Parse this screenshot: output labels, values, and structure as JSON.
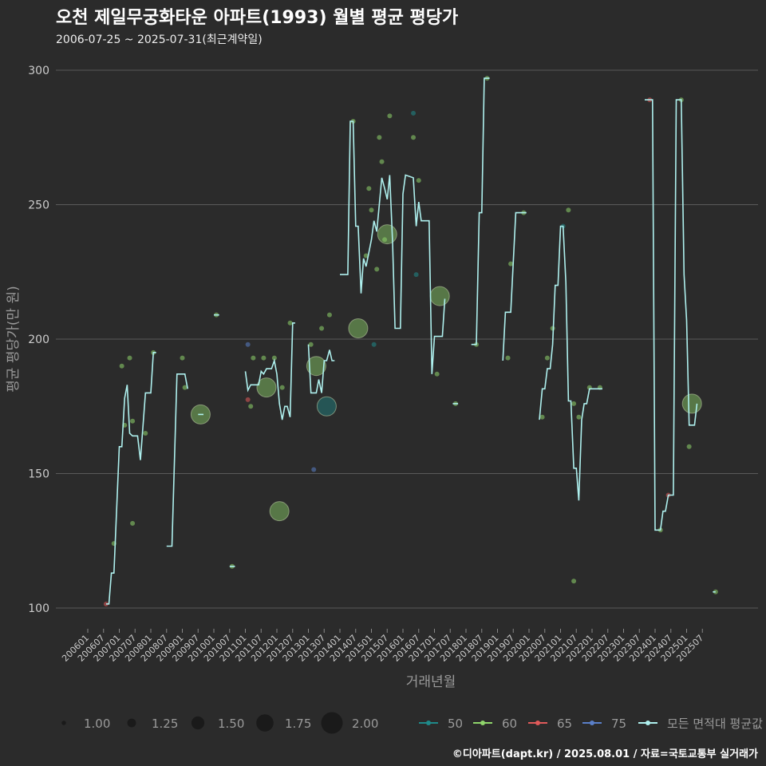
{
  "title": "오천 제일무궁화타운 아파트(1993) 월별 평균 평당가",
  "subtitle": "2006-07-25 ~ 2025-07-31(최근계약일)",
  "caption": "©디아파트(dapt.kr) / 2025.08.01 / 자료=국토교통부 실거래가",
  "colors": {
    "background": "#2b2b2b",
    "grid": "#5a5a5a",
    "text": "#cccccc",
    "avg_line": "#aef0ee",
    "area_50": "#1f8a8a",
    "area_60": "#8fd56b",
    "area_65": "#e05a5a",
    "area_75": "#5a7fc8"
  },
  "chart_data": {
    "type": "line",
    "xlabel": "거래년월",
    "ylabel": "평균 평당가(만 원)",
    "ylim": [
      95,
      305
    ],
    "yticks": [
      100,
      150,
      200,
      250,
      300
    ],
    "x_tick_labels": [
      "200601",
      "200607",
      "200701",
      "200707",
      "200801",
      "200807",
      "200901",
      "200907",
      "201001",
      "201007",
      "201101",
      "201107",
      "201201",
      "201207",
      "201301",
      "201307",
      "201401",
      "201407",
      "201501",
      "201507",
      "201601",
      "201607",
      "201701",
      "201707",
      "201801",
      "201807",
      "201901",
      "201907",
      "202001",
      "202007",
      "202101",
      "202107",
      "202201",
      "202207",
      "202301",
      "202307",
      "202401",
      "202407",
      "202501",
      "202507"
    ],
    "size_legend": {
      "labels": [
        "1.00",
        "1.25",
        "1.50",
        "1.75",
        "2.00"
      ],
      "values": [
        1.0,
        1.25,
        1.5,
        1.75,
        2.0
      ]
    },
    "color_legend": [
      "50",
      "60",
      "65",
      "75",
      "모든 면적대 평균값"
    ],
    "avg_series": {
      "name": "모든 면적대 평균값",
      "segments": [
        [
          [
            2006.58,
            101.5
          ],
          [
            2006.67,
            101.5
          ],
          [
            2006.75,
            113
          ],
          [
            2006.83,
            113
          ],
          [
            2007.0,
            160
          ],
          [
            2007.08,
            160
          ],
          [
            2007.17,
            178
          ],
          [
            2007.25,
            183
          ],
          [
            2007.33,
            165
          ],
          [
            2007.42,
            164
          ],
          [
            2007.58,
            164
          ],
          [
            2007.67,
            155
          ],
          [
            2007.83,
            180
          ],
          [
            2008.0,
            180
          ],
          [
            2008.08,
            195
          ],
          [
            2008.17,
            195
          ]
        ],
        [
          [
            2008.5,
            123
          ],
          [
            2008.67,
            123
          ],
          [
            2008.83,
            187
          ],
          [
            2009.0,
            187
          ],
          [
            2009.08,
            187
          ],
          [
            2009.17,
            181.5
          ]
        ],
        [
          [
            2009.5,
            172
          ],
          [
            2009.67,
            172
          ]
        ],
        [
          [
            2010.0,
            209
          ],
          [
            2010.17,
            209
          ]
        ],
        [
          [
            2010.5,
            115.5
          ],
          [
            2010.67,
            115.5
          ]
        ],
        [
          [
            2011.0,
            188
          ],
          [
            2011.08,
            181
          ],
          [
            2011.17,
            183
          ],
          [
            2011.42,
            183
          ],
          [
            2011.5,
            188
          ],
          [
            2011.58,
            187
          ],
          [
            2011.67,
            189
          ],
          [
            2011.83,
            189
          ],
          [
            2011.92,
            192
          ],
          [
            2012.0,
            187
          ],
          [
            2012.08,
            176
          ],
          [
            2012.17,
            170
          ],
          [
            2012.25,
            175
          ],
          [
            2012.33,
            175
          ],
          [
            2012.42,
            171
          ],
          [
            2012.5,
            206
          ],
          [
            2012.58,
            206
          ]
        ],
        [
          [
            2013.0,
            198
          ],
          [
            2013.08,
            180
          ],
          [
            2013.25,
            180
          ],
          [
            2013.33,
            185
          ],
          [
            2013.42,
            180
          ],
          [
            2013.5,
            192
          ],
          [
            2013.58,
            192
          ],
          [
            2013.67,
            196
          ],
          [
            2013.75,
            192
          ],
          [
            2013.83,
            192
          ]
        ],
        [
          [
            2014.0,
            224
          ],
          [
            2014.25,
            224
          ],
          [
            2014.33,
            281
          ],
          [
            2014.42,
            281
          ],
          [
            2014.5,
            242
          ],
          [
            2014.58,
            242
          ],
          [
            2014.67,
            217
          ],
          [
            2014.75,
            230
          ],
          [
            2014.83,
            227
          ],
          [
            2015.0,
            237
          ],
          [
            2015.08,
            244
          ],
          [
            2015.17,
            240
          ],
          [
            2015.33,
            260
          ],
          [
            2015.42,
            256
          ],
          [
            2015.5,
            252
          ],
          [
            2015.58,
            261
          ],
          [
            2015.67,
            236
          ],
          [
            2015.75,
            204
          ],
          [
            2015.92,
            204
          ],
          [
            2016.0,
            254
          ],
          [
            2016.08,
            261
          ],
          [
            2016.33,
            260
          ],
          [
            2016.42,
            242
          ],
          [
            2016.5,
            251
          ],
          [
            2016.58,
            244
          ],
          [
            2016.83,
            244
          ],
          [
            2016.92,
            187
          ],
          [
            2017.0,
            201
          ],
          [
            2017.25,
            201
          ],
          [
            2017.33,
            215
          ]
        ],
        [
          [
            2017.58,
            176
          ],
          [
            2017.75,
            176
          ]
        ],
        [
          [
            2018.17,
            198
          ],
          [
            2018.33,
            198
          ],
          [
            2018.42,
            247
          ],
          [
            2018.5,
            247
          ],
          [
            2018.58,
            297
          ],
          [
            2018.75,
            297
          ]
        ],
        [
          [
            2019.17,
            192
          ],
          [
            2019.25,
            210
          ],
          [
            2019.42,
            210
          ],
          [
            2019.58,
            247
          ],
          [
            2019.75,
            247
          ],
          [
            2019.92,
            247
          ]
        ],
        [
          [
            2020.33,
            170
          ],
          [
            2020.42,
            181.5
          ],
          [
            2020.5,
            181.5
          ],
          [
            2020.58,
            189
          ],
          [
            2020.67,
            189
          ],
          [
            2020.75,
            198
          ],
          [
            2020.83,
            220
          ],
          [
            2020.92,
            220
          ],
          [
            2021.0,
            242
          ],
          [
            2021.08,
            242
          ],
          [
            2021.17,
            221
          ],
          [
            2021.25,
            177
          ],
          [
            2021.33,
            177
          ],
          [
            2021.42,
            152
          ],
          [
            2021.5,
            152
          ],
          [
            2021.58,
            140
          ],
          [
            2021.67,
            170
          ],
          [
            2021.75,
            176
          ],
          [
            2021.83,
            176
          ],
          [
            2021.92,
            181.5
          ],
          [
            2022.0,
            181.5
          ],
          [
            2022.17,
            181.5
          ],
          [
            2022.33,
            181.5
          ]
        ],
        [
          [
            2023.67,
            289
          ],
          [
            2023.75,
            289
          ],
          [
            2023.83,
            289
          ],
          [
            2023.92,
            289
          ],
          [
            2024.0,
            129
          ],
          [
            2024.08,
            129
          ],
          [
            2024.17,
            129
          ],
          [
            2024.25,
            136
          ],
          [
            2024.33,
            136
          ],
          [
            2024.42,
            142
          ],
          [
            2024.58,
            142
          ],
          [
            2024.67,
            289
          ],
          [
            2024.75,
            289
          ],
          [
            2024.83,
            289
          ],
          [
            2024.92,
            224
          ],
          [
            2025.0,
            207
          ],
          [
            2025.08,
            168
          ],
          [
            2025.25,
            168
          ],
          [
            2025.33,
            176
          ]
        ],
        [
          [
            2025.83,
            106
          ],
          [
            2025.92,
            106
          ]
        ]
      ]
    },
    "points": [
      {
        "x": 2006.58,
        "y": 101.5,
        "area": "65",
        "size": 1.0
      },
      {
        "x": 2006.83,
        "y": 124,
        "area": "60",
        "size": 1.0
      },
      {
        "x": 2007.08,
        "y": 190,
        "area": "60",
        "size": 1.0
      },
      {
        "x": 2007.17,
        "y": 168,
        "area": "60",
        "size": 1.0
      },
      {
        "x": 2007.33,
        "y": 193,
        "area": "60",
        "size": 1.0
      },
      {
        "x": 2007.42,
        "y": 131.5,
        "area": "60",
        "size": 1.0
      },
      {
        "x": 2007.42,
        "y": 169.5,
        "area": "60",
        "size": 1.0
      },
      {
        "x": 2007.83,
        "y": 165,
        "area": "60",
        "size": 1.0
      },
      {
        "x": 2008.08,
        "y": 195,
        "area": "60",
        "size": 1.0
      },
      {
        "x": 2009.0,
        "y": 193,
        "area": "60",
        "size": 1.0
      },
      {
        "x": 2009.08,
        "y": 182,
        "area": "60",
        "size": 1.0
      },
      {
        "x": 2009.58,
        "y": 172,
        "area": "60",
        "size": 1.75
      },
      {
        "x": 2010.08,
        "y": 209,
        "area": "60",
        "size": 1.0
      },
      {
        "x": 2010.58,
        "y": 115.5,
        "area": "60",
        "size": 1.0
      },
      {
        "x": 2011.08,
        "y": 198,
        "area": "75",
        "size": 1.0
      },
      {
        "x": 2011.08,
        "y": 177.5,
        "area": "65",
        "size": 1.0
      },
      {
        "x": 2011.17,
        "y": 175,
        "area": "60",
        "size": 1.0
      },
      {
        "x": 2011.25,
        "y": 193,
        "area": "60",
        "size": 1.0
      },
      {
        "x": 2011.58,
        "y": 193,
        "area": "60",
        "size": 1.0
      },
      {
        "x": 2011.67,
        "y": 182,
        "area": "60",
        "size": 1.75
      },
      {
        "x": 2011.92,
        "y": 193,
        "area": "60",
        "size": 1.0
      },
      {
        "x": 2012.08,
        "y": 136,
        "area": "60",
        "size": 1.75
      },
      {
        "x": 2012.17,
        "y": 182,
        "area": "60",
        "size": 1.0
      },
      {
        "x": 2012.42,
        "y": 206,
        "area": "60",
        "size": 1.0
      },
      {
        "x": 2013.08,
        "y": 198,
        "area": "60",
        "size": 1.0
      },
      {
        "x": 2013.17,
        "y": 151.5,
        "area": "75",
        "size": 1.0
      },
      {
        "x": 2013.25,
        "y": 190,
        "area": "60",
        "size": 1.75
      },
      {
        "x": 2013.42,
        "y": 204,
        "area": "60",
        "size": 1.0
      },
      {
        "x": 2013.58,
        "y": 175,
        "area": "50",
        "size": 1.75
      },
      {
        "x": 2013.67,
        "y": 209,
        "area": "60",
        "size": 1.0
      },
      {
        "x": 2014.42,
        "y": 281,
        "area": "60",
        "size": 1.0
      },
      {
        "x": 2014.58,
        "y": 204,
        "area": "60",
        "size": 1.75
      },
      {
        "x": 2014.83,
        "y": 231,
        "area": "60",
        "size": 1.0
      },
      {
        "x": 2014.92,
        "y": 256,
        "area": "60",
        "size": 1.0
      },
      {
        "x": 2015.0,
        "y": 248,
        "area": "60",
        "size": 1.0
      },
      {
        "x": 2015.08,
        "y": 198,
        "area": "50",
        "size": 1.0
      },
      {
        "x": 2015.17,
        "y": 226,
        "area": "60",
        "size": 1.0
      },
      {
        "x": 2015.25,
        "y": 275,
        "area": "60",
        "size": 1.0
      },
      {
        "x": 2015.33,
        "y": 266,
        "area": "60",
        "size": 1.0
      },
      {
        "x": 2015.42,
        "y": 237,
        "area": "60",
        "size": 1.0
      },
      {
        "x": 2015.5,
        "y": 239,
        "area": "60",
        "size": 1.75
      },
      {
        "x": 2015.58,
        "y": 283,
        "area": "60",
        "size": 1.0
      },
      {
        "x": 2016.33,
        "y": 284,
        "area": "50",
        "size": 1.0
      },
      {
        "x": 2016.33,
        "y": 275,
        "area": "60",
        "size": 1.0
      },
      {
        "x": 2016.42,
        "y": 224,
        "area": "50",
        "size": 1.0
      },
      {
        "x": 2016.5,
        "y": 259,
        "area": "60",
        "size": 1.0
      },
      {
        "x": 2017.08,
        "y": 187,
        "area": "60",
        "size": 1.0
      },
      {
        "x": 2017.17,
        "y": 216,
        "area": "60",
        "size": 1.75
      },
      {
        "x": 2017.67,
        "y": 176,
        "area": "60",
        "size": 1.0
      },
      {
        "x": 2018.33,
        "y": 198,
        "area": "60",
        "size": 1.0
      },
      {
        "x": 2018.67,
        "y": 297,
        "area": "60",
        "size": 1.0
      },
      {
        "x": 2019.33,
        "y": 193,
        "area": "60",
        "size": 1.0
      },
      {
        "x": 2019.42,
        "y": 228,
        "area": "60",
        "size": 1.0
      },
      {
        "x": 2019.83,
        "y": 247,
        "area": "60",
        "size": 1.0
      },
      {
        "x": 2020.42,
        "y": 171,
        "area": "60",
        "size": 1.0
      },
      {
        "x": 2020.58,
        "y": 193,
        "area": "60",
        "size": 1.0
      },
      {
        "x": 2020.75,
        "y": 204,
        "area": "60",
        "size": 1.0
      },
      {
        "x": 2021.08,
        "y": 242,
        "area": "50",
        "size": 1.0
      },
      {
        "x": 2021.25,
        "y": 248,
        "area": "60",
        "size": 1.0
      },
      {
        "x": 2021.42,
        "y": 110,
        "area": "60",
        "size": 1.0
      },
      {
        "x": 2021.42,
        "y": 176,
        "area": "60",
        "size": 1.0
      },
      {
        "x": 2021.58,
        "y": 171,
        "area": "60",
        "size": 1.0
      },
      {
        "x": 2021.92,
        "y": 182,
        "area": "60",
        "size": 1.0
      },
      {
        "x": 2022.25,
        "y": 182,
        "area": "60",
        "size": 1.0
      },
      {
        "x": 2023.83,
        "y": 289,
        "area": "65",
        "size": 1.0
      },
      {
        "x": 2024.17,
        "y": 129,
        "area": "60",
        "size": 1.0
      },
      {
        "x": 2024.42,
        "y": 142,
        "area": "65",
        "size": 1.0
      },
      {
        "x": 2024.83,
        "y": 289,
        "area": "60",
        "size": 1.0
      },
      {
        "x": 2025.08,
        "y": 160,
        "area": "60",
        "size": 1.0
      },
      {
        "x": 2025.17,
        "y": 176,
        "area": "60",
        "size": 1.75
      },
      {
        "x": 2025.92,
        "y": 106,
        "area": "60",
        "size": 1.0
      }
    ]
  }
}
